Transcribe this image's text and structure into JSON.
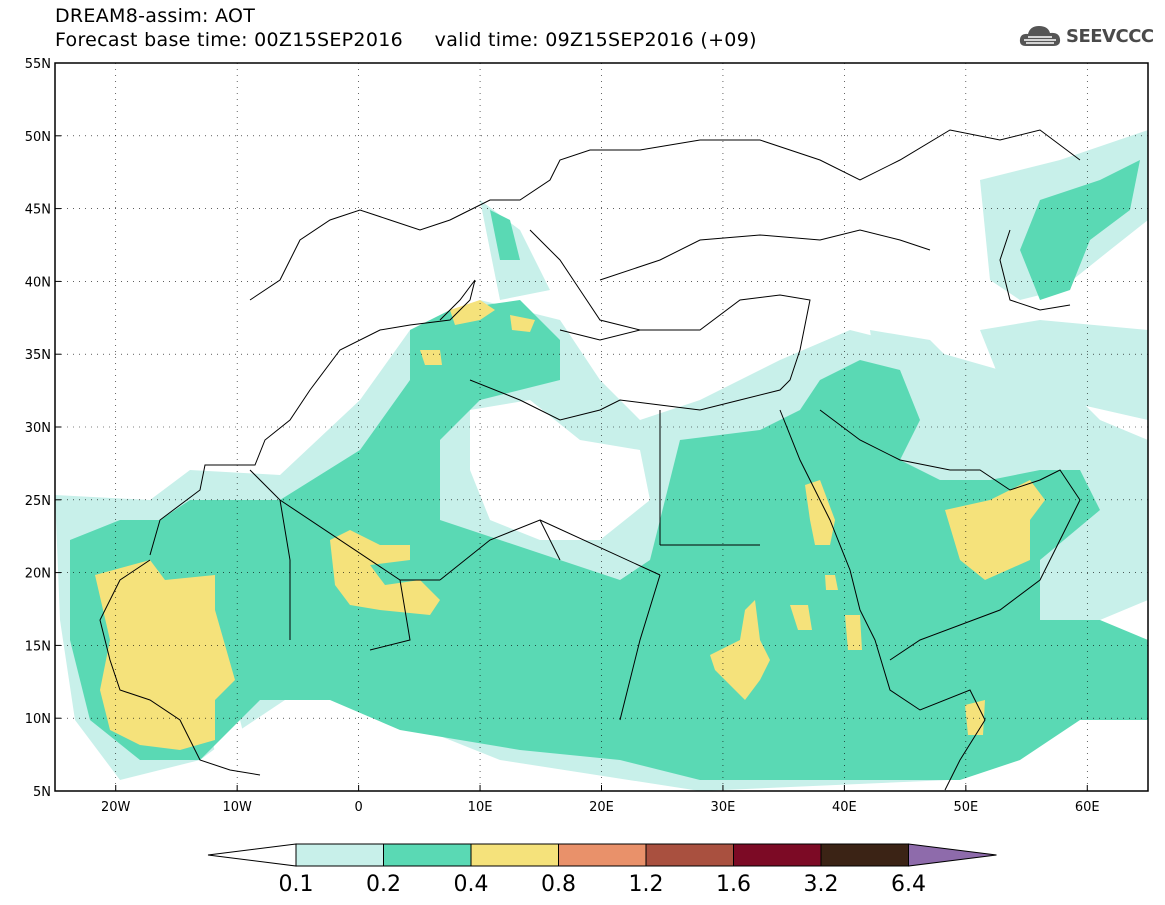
{
  "title": {
    "line1": "DREAM8-assim: AOT",
    "line2": "Forecast base time: 00Z15SEP2016     valid time: 09Z15SEP2016 (+09)"
  },
  "logo": {
    "text": "SEEVCCC",
    "icon": "cloud-icon"
  },
  "map": {
    "lon_range": [
      -25,
      65
    ],
    "lat_range": [
      5,
      55
    ],
    "x_ticks": [
      "20W",
      "10W",
      "0",
      "10E",
      "20E",
      "30E",
      "40E",
      "50E",
      "60E"
    ],
    "y_ticks": [
      "55N",
      "50N",
      "45N",
      "40N",
      "35N",
      "30N",
      "25N",
      "20N",
      "15N",
      "10N",
      "5N"
    ],
    "grid": true
  },
  "colorbar": {
    "labels": [
      "0.1",
      "0.2",
      "0.4",
      "0.8",
      "1.2",
      "1.6",
      "3.2",
      "6.4"
    ],
    "colors": {
      "below": "#ffffff",
      "c1": "#c8f0ea",
      "c2": "#5ad9b4",
      "c3": "#f5e27b",
      "c4": "#e9916a",
      "c5": "#a9503f",
      "c6": "#7c0a25",
      "c7": "#3b2315",
      "above": "#8e6bab"
    }
  }
}
